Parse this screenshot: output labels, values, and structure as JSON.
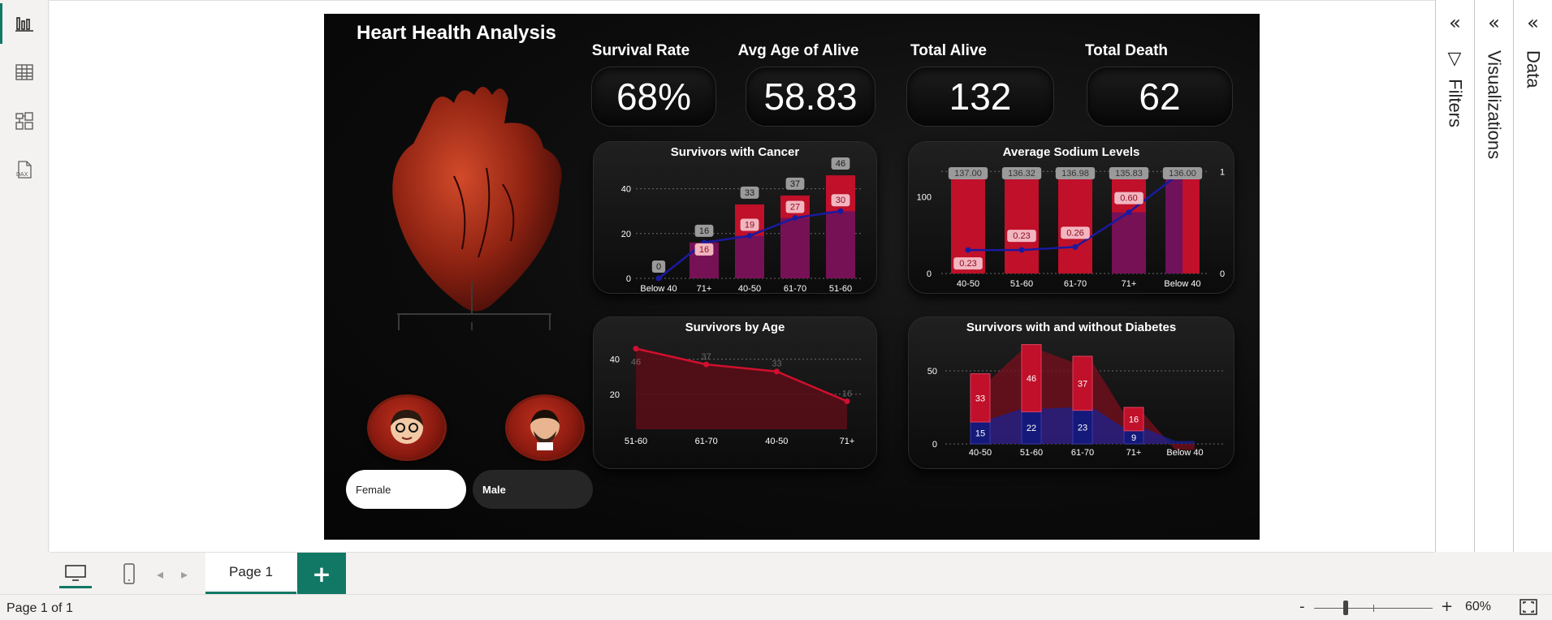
{
  "report": {
    "title": "Heart Health Analysis",
    "kpis": [
      {
        "label": "Survival Rate",
        "value": "68%"
      },
      {
        "label": "Avg Age of Alive",
        "value": "58.83"
      },
      {
        "label": "Total Alive",
        "value": "132"
      },
      {
        "label": "Total Death",
        "value": "62"
      }
    ],
    "slicer": {
      "options": [
        "Female",
        "Male"
      ],
      "selected": "Female"
    },
    "colors": {
      "bar_red": "#c0102a",
      "line_blue": "#1a1aa0",
      "bar_blue": "#14197a",
      "area_red": "#5a0d18"
    }
  },
  "chart_data": [
    {
      "type": "bar",
      "title": "Survivors with Cancer",
      "categories": [
        "Below 40",
        "71+",
        "40-50",
        "61-70",
        "51-60"
      ],
      "series": [
        {
          "values": [
            0,
            16,
            33,
            37,
            46
          ]
        },
        {
          "values": [
            0,
            16,
            19,
            27,
            30
          ]
        }
      ],
      "yticks": [
        "0",
        "20",
        "40"
      ],
      "ylim": [
        0,
        50
      ]
    },
    {
      "type": "bar",
      "title": "Average Sodium Levels",
      "categories": [
        "40-50",
        "51-60",
        "61-70",
        "71+",
        "Below 40"
      ],
      "series": [
        {
          "values": [
            137.0,
            136.32,
            136.98,
            135.83,
            136.0
          ]
        },
        {
          "values": [
            0.23,
            0.23,
            0.26,
            0.6,
            1.0
          ]
        }
      ],
      "bar_labels": [
        "137.00",
        "136.32",
        "136.98",
        "135.83",
        "136.00"
      ],
      "line_labels": [
        "0.23",
        "0.23",
        "0.26",
        "0.60",
        ""
      ],
      "yticks": [
        "0",
        "100"
      ],
      "y2ticks": [
        "0",
        "1"
      ],
      "ylim": [
        0,
        140
      ],
      "y2lim": [
        0,
        1.05
      ]
    },
    {
      "type": "area",
      "title": "Survivors by Age",
      "categories": [
        "51-60",
        "61-70",
        "40-50",
        "71+"
      ],
      "values": [
        46,
        37,
        33,
        16
      ],
      "yticks": [
        "20",
        "40"
      ],
      "ylim": [
        0,
        50
      ]
    },
    {
      "type": "bar",
      "title": "Survivors with and without Diabetes",
      "categories": [
        "40-50",
        "51-60",
        "61-70",
        "71+",
        "Below 40"
      ],
      "series": [
        {
          "values": [
            15,
            22,
            23,
            9,
            0
          ]
        },
        {
          "values": [
            33,
            46,
            37,
            16,
            0
          ]
        }
      ],
      "yticks": [
        "0",
        "50"
      ],
      "ylim": [
        0,
        70
      ]
    }
  ],
  "panes": {
    "filters": "Filters",
    "visualizations": "Visualizations",
    "data": "Data"
  },
  "tabs": {
    "page1": "Page 1",
    "add": "+"
  },
  "status": {
    "page": "Page 1 of 1",
    "zoom": "60%",
    "minus": "-",
    "plus": "+"
  },
  "left_rail": [
    "report-view-icon",
    "table-view-icon",
    "model-view-icon",
    "dax-query-icon"
  ]
}
